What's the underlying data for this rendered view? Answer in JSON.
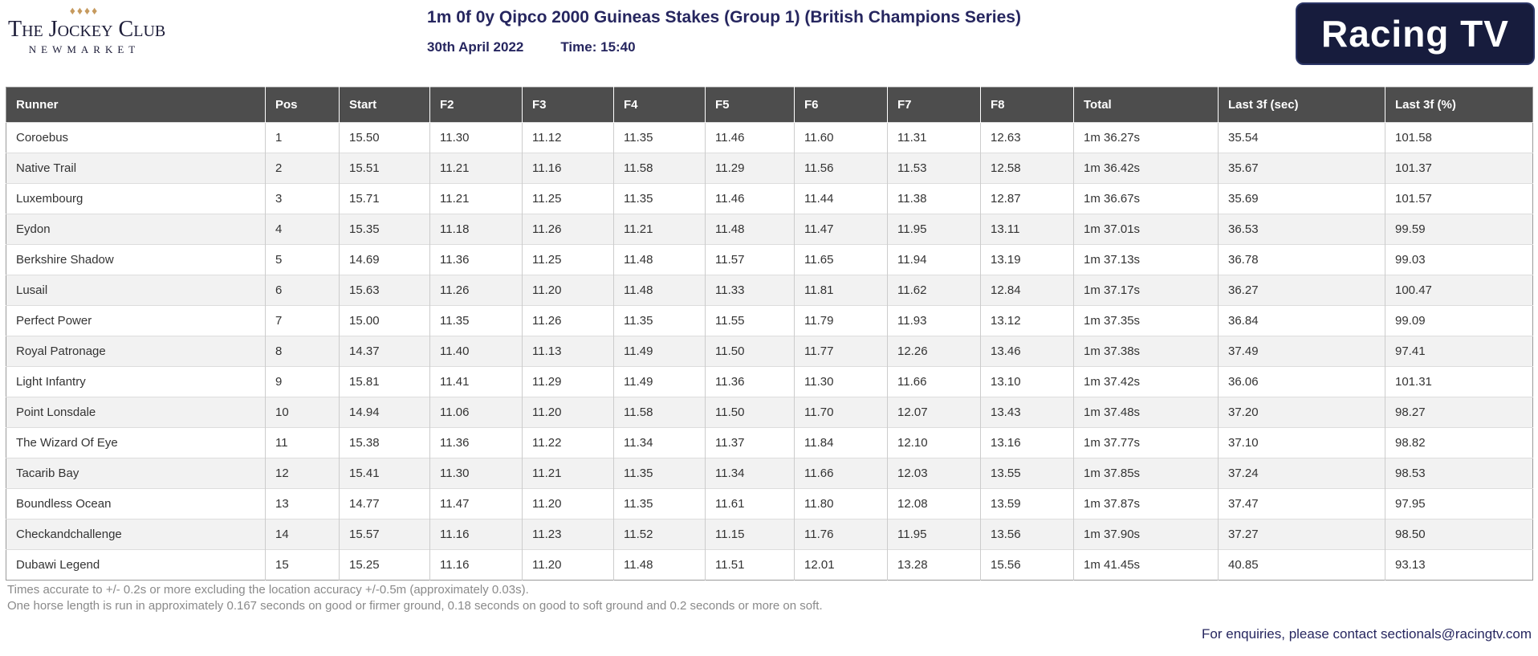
{
  "header": {
    "jockey_club": {
      "diamonds": "♦♦♦♦",
      "name": "The Jockey Club",
      "location": "NEWMARKET"
    },
    "race_title": "1m 0f 0y Qipco 2000 Guineas Stakes (Group 1) (British Champions Series)",
    "race_date": "30th April 2022",
    "race_time": "Time: 15:40",
    "broadcaster_logo_text": "Racing TV"
  },
  "table": {
    "columns": [
      "Runner",
      "Pos",
      "Start",
      "F2",
      "F3",
      "F4",
      "F5",
      "F6",
      "F7",
      "F8",
      "Total",
      "Last 3f (sec)",
      "Last 3f (%)"
    ],
    "rows": [
      [
        "Coroebus",
        "1",
        "15.50",
        "11.30",
        "11.12",
        "11.35",
        "11.46",
        "11.60",
        "11.31",
        "12.63",
        "1m 36.27s",
        "35.54",
        "101.58"
      ],
      [
        "Native Trail",
        "2",
        "15.51",
        "11.21",
        "11.16",
        "11.58",
        "11.29",
        "11.56",
        "11.53",
        "12.58",
        "1m 36.42s",
        "35.67",
        "101.37"
      ],
      [
        "Luxembourg",
        "3",
        "15.71",
        "11.21",
        "11.25",
        "11.35",
        "11.46",
        "11.44",
        "11.38",
        "12.87",
        "1m 36.67s",
        "35.69",
        "101.57"
      ],
      [
        "Eydon",
        "4",
        "15.35",
        "11.18",
        "11.26",
        "11.21",
        "11.48",
        "11.47",
        "11.95",
        "13.11",
        "1m 37.01s",
        "36.53",
        "99.59"
      ],
      [
        "Berkshire Shadow",
        "5",
        "14.69",
        "11.36",
        "11.25",
        "11.48",
        "11.57",
        "11.65",
        "11.94",
        "13.19",
        "1m 37.13s",
        "36.78",
        "99.03"
      ],
      [
        "Lusail",
        "6",
        "15.63",
        "11.26",
        "11.20",
        "11.48",
        "11.33",
        "11.81",
        "11.62",
        "12.84",
        "1m 37.17s",
        "36.27",
        "100.47"
      ],
      [
        "Perfect Power",
        "7",
        "15.00",
        "11.35",
        "11.26",
        "11.35",
        "11.55",
        "11.79",
        "11.93",
        "13.12",
        "1m 37.35s",
        "36.84",
        "99.09"
      ],
      [
        "Royal Patronage",
        "8",
        "14.37",
        "11.40",
        "11.13",
        "11.49",
        "11.50",
        "11.77",
        "12.26",
        "13.46",
        "1m 37.38s",
        "37.49",
        "97.41"
      ],
      [
        "Light Infantry",
        "9",
        "15.81",
        "11.41",
        "11.29",
        "11.49",
        "11.36",
        "11.30",
        "11.66",
        "13.10",
        "1m 37.42s",
        "36.06",
        "101.31"
      ],
      [
        "Point Lonsdale",
        "10",
        "14.94",
        "11.06",
        "11.20",
        "11.58",
        "11.50",
        "11.70",
        "12.07",
        "13.43",
        "1m 37.48s",
        "37.20",
        "98.27"
      ],
      [
        "The Wizard Of Eye",
        "11",
        "15.38",
        "11.36",
        "11.22",
        "11.34",
        "11.37",
        "11.84",
        "12.10",
        "13.16",
        "1m 37.77s",
        "37.10",
        "98.82"
      ],
      [
        "Tacarib Bay",
        "12",
        "15.41",
        "11.30",
        "11.21",
        "11.35",
        "11.34",
        "11.66",
        "12.03",
        "13.55",
        "1m 37.85s",
        "37.24",
        "98.53"
      ],
      [
        "Boundless Ocean",
        "13",
        "14.77",
        "11.47",
        "11.20",
        "11.35",
        "11.61",
        "11.80",
        "12.08",
        "13.59",
        "1m 37.87s",
        "37.47",
        "97.95"
      ],
      [
        "Checkandchallenge",
        "14",
        "15.57",
        "11.16",
        "11.23",
        "11.52",
        "11.15",
        "11.76",
        "11.95",
        "13.56",
        "1m 37.90s",
        "37.27",
        "98.50"
      ],
      [
        "Dubawi Legend",
        "15",
        "15.25",
        "11.16",
        "11.20",
        "11.48",
        "11.51",
        "12.01",
        "13.28",
        "15.56",
        "1m 41.45s",
        "40.85",
        "93.13"
      ]
    ]
  },
  "footer": {
    "note1": "Times accurate to +/- 0.2s or more excluding the location accuracy +/-0.5m (approximately 0.03s).",
    "note2": "One horse length is run in approximately 0.167 seconds on good or firmer ground, 0.18 seconds on good to soft ground and 0.2 seconds or more on soft.",
    "contact": "For enquiries, please contact sectionals@racingtv.com"
  },
  "colors": {
    "brand_navy": "#26265f",
    "logo_box_navy": "#171c3d",
    "header_gray": "#4d4d4d",
    "row_alt_gray": "#f2f2f2",
    "diamond_gold": "#c69a5e",
    "footnote_gray": "#8a8a8a"
  }
}
